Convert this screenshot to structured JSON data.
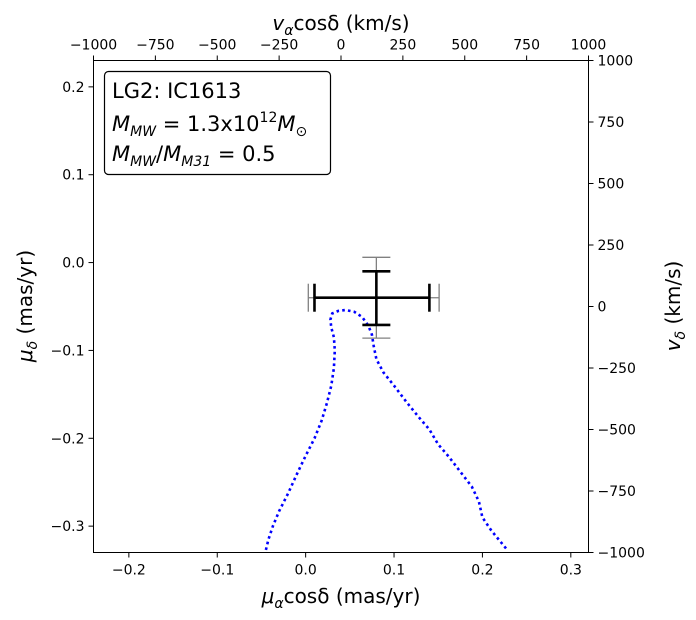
{
  "chart_data": {
    "type": "line",
    "annotation": {
      "line1": "LG2: IC1613",
      "line2": {
        "M": "M",
        "sub1": "MW",
        "eq": " = 1.3x10",
        "sup": "12",
        "M2": "M",
        "sub2": "⊙"
      },
      "line3": {
        "M": "M",
        "sub1": "MW",
        "slash": "/",
        "M2": "M",
        "sub2": "M31",
        "eq": " = 0.5"
      }
    },
    "axes": {
      "bottom": {
        "label": {
          "main": "μ",
          "sub": "α",
          "rest": "cosδ (mas/yr)"
        },
        "lim": [
          -0.24,
          0.32
        ],
        "ticks": [
          -0.2,
          -0.1,
          0.0,
          0.1,
          0.2,
          0.3
        ],
        "tick_labels": [
          "−0.2",
          "−0.1",
          "0.0",
          "0.1",
          "0.2",
          "0.3"
        ]
      },
      "left": {
        "label": {
          "main": "μ",
          "sub": "δ",
          "rest": " (mas/yr)"
        },
        "lim": [
          -0.33,
          0.23
        ],
        "ticks": [
          -0.3,
          -0.2,
          -0.1,
          0.0,
          0.1,
          0.2
        ],
        "tick_labels": [
          "−0.3",
          "−0.2",
          "−0.1",
          "0.0",
          "0.1",
          "0.2"
        ]
      },
      "top": {
        "label": {
          "main": "v",
          "sub": "α",
          "rest": "cosδ (km/s)"
        },
        "lim": [
          -1000,
          1000
        ],
        "ticks": [
          -1000,
          -750,
          -500,
          -250,
          0,
          250,
          500,
          750,
          1000
        ],
        "tick_labels": [
          "−1000",
          "−750",
          "−500",
          "−250",
          "0",
          "250",
          "500",
          "750",
          "1000"
        ]
      },
      "right": {
        "label": {
          "main": "v",
          "sub": "δ",
          "rest": " (km/s)"
        },
        "lim": [
          -1000,
          1000
        ],
        "ticks": [
          -1000,
          -750,
          -500,
          -250,
          0,
          250,
          500,
          750,
          1000
        ],
        "tick_labels": [
          "−1000",
          "−750",
          "−500",
          "−250",
          "0",
          "250",
          "500",
          "750",
          "1000"
        ]
      }
    },
    "measurement": {
      "x": 0.08,
      "y": -0.04,
      "black_err_x": [
        0.01,
        0.14
      ],
      "black_err_y": [
        -0.071,
        -0.01
      ],
      "gray_err_x": [
        0.003,
        0.151
      ],
      "gray_err_y": [
        -0.086,
        0.006
      ],
      "colors": {
        "inner": "#000000",
        "outer": "#808080"
      }
    },
    "series": [
      {
        "style": "dotted",
        "color": "#0000ff",
        "x": [
          -0.045,
          -0.042,
          -0.037,
          -0.03,
          -0.02,
          -0.01,
          0.0,
          0.01,
          0.018,
          0.024,
          0.029,
          0.032,
          0.033,
          0.032,
          0.029,
          0.028,
          0.03,
          0.037,
          0.045,
          0.055,
          0.064,
          0.071,
          0.075,
          0.077,
          0.08,
          0.088,
          0.1,
          0.115,
          0.128,
          0.14,
          0.15,
          0.162,
          0.175,
          0.188,
          0.196,
          0.2,
          0.21,
          0.228
        ],
        "y": [
          -0.327,
          -0.315,
          -0.3,
          -0.283,
          -0.263,
          -0.241,
          -0.22,
          -0.2,
          -0.18,
          -0.16,
          -0.14,
          -0.12,
          -0.1,
          -0.085,
          -0.074,
          -0.065,
          -0.058,
          -0.055,
          -0.054,
          -0.056,
          -0.062,
          -0.072,
          -0.082,
          -0.095,
          -0.11,
          -0.125,
          -0.14,
          -0.16,
          -0.176,
          -0.19,
          -0.207,
          -0.221,
          -0.238,
          -0.255,
          -0.272,
          -0.29,
          -0.305,
          -0.327
        ]
      }
    ]
  }
}
